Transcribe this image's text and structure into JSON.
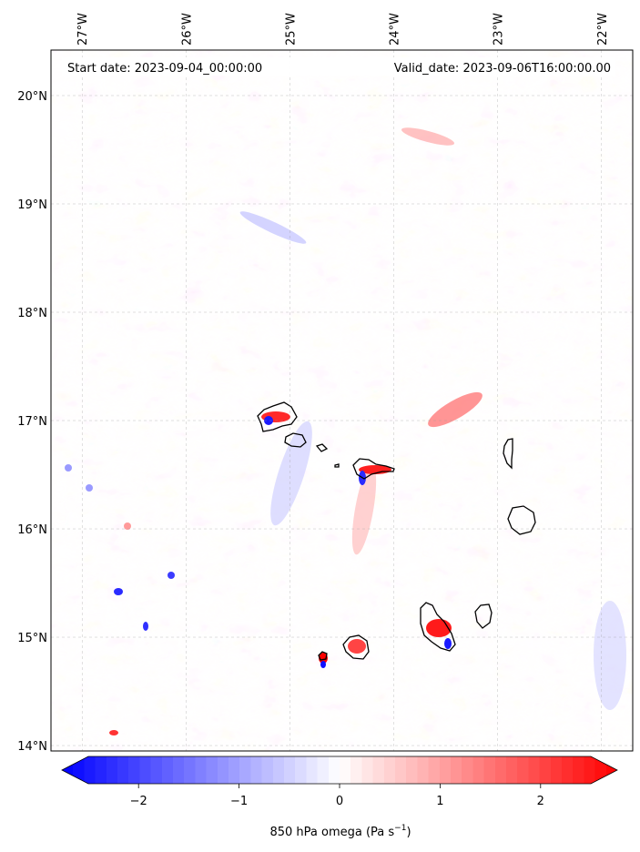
{
  "map": {
    "start_label": "Start date: 2023-09-04_00:00:00",
    "valid_label": "Valid_date: 2023-09-06T16:00:00.00",
    "lon_ticks": [
      {
        "value": -27,
        "label": "27°W"
      },
      {
        "value": -26,
        "label": "26°W"
      },
      {
        "value": -25,
        "label": "25°W"
      },
      {
        "value": -24,
        "label": "24°W"
      },
      {
        "value": -23,
        "label": "23°W"
      },
      {
        "value": -22,
        "label": "22°W"
      }
    ],
    "lat_ticks": [
      {
        "value": 20,
        "label": "20°N"
      },
      {
        "value": 19,
        "label": "19°N"
      },
      {
        "value": 18,
        "label": "18°N"
      },
      {
        "value": 17,
        "label": "17°N"
      },
      {
        "value": 16,
        "label": "16°N"
      },
      {
        "value": 15,
        "label": "15°N"
      },
      {
        "value": 14,
        "label": "14°N"
      }
    ],
    "lon_range": [
      -27.3,
      -21.7
    ],
    "lat_range": [
      13.95,
      20.42
    ],
    "colormap": {
      "negative": "#0000ff",
      "zero": "#ffffff",
      "positive": "#ff0000"
    }
  },
  "colorbar": {
    "ticks": [
      {
        "value": -2,
        "label": "−2"
      },
      {
        "value": -1,
        "label": "−1"
      },
      {
        "value": 0,
        "label": "0"
      },
      {
        "value": 1,
        "label": "1"
      },
      {
        "value": 2,
        "label": "2"
      }
    ],
    "range": [
      -2.5,
      2.5
    ],
    "label_main": "850 hPa omega (Pa s",
    "label_exp": "−1",
    "label_close": ")"
  }
}
